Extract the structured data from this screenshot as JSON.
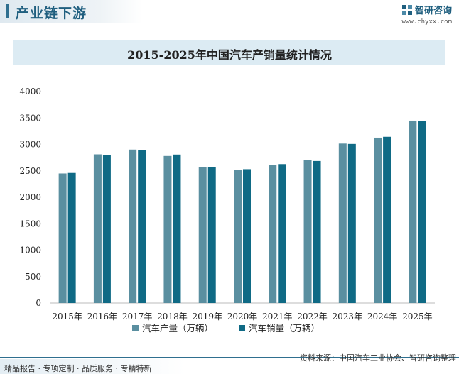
{
  "header": {
    "title": "产业链下游",
    "brand_name": "智研咨询",
    "brand_url": "www.chyxx.com"
  },
  "chart_data": {
    "type": "bar",
    "title": "2015-2025年中国汽车产销量统计情况",
    "categories": [
      "2015年",
      "2016年",
      "2017年",
      "2018年",
      "2019年",
      "2020年",
      "2021年",
      "2022年",
      "2023年",
      "2024年",
      "2025年"
    ],
    "series": [
      {
        "name": "汽车产量（万辆）",
        "values": [
          2450,
          2812,
          2902,
          2781,
          2572,
          2523,
          2608,
          2702,
          3016,
          3128,
          3450
        ],
        "color": "#5a8fa0"
      },
      {
        "name": "汽车销量（万辆）",
        "values": [
          2460,
          2803,
          2888,
          2808,
          2577,
          2531,
          2627,
          2686,
          3009,
          3144,
          3440
        ],
        "color": "#0f6a85"
      }
    ],
    "ylim": [
      0,
      4000
    ],
    "yticks": [
      "0",
      "500",
      "1000",
      "1500",
      "2000",
      "2500",
      "3000",
      "3500",
      "4000"
    ],
    "xlabel": "",
    "ylabel": "",
    "legend": "bottom",
    "grid": false
  },
  "footer": {
    "left": "精品报告 · 专项定制 · 品质服务 · 专精特新",
    "right": "资料来源：中国汽车工业协会、智研咨询整理"
  }
}
